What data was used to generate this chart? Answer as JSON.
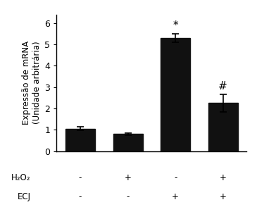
{
  "values": [
    1.05,
    0.8,
    5.3,
    2.25
  ],
  "errors": [
    0.08,
    0.05,
    0.2,
    0.42
  ],
  "bar_color": "#111111",
  "bar_width": 0.62,
  "bar_positions": [
    1,
    2,
    3,
    4
  ],
  "ylabel_line1": "Expressão de mRNA",
  "ylabel_line2": "(Unidade arbitrária)",
  "ylim": [
    0,
    6.4
  ],
  "yticks": [
    0,
    1,
    2,
    3,
    4,
    5,
    6
  ],
  "h2o2_labels": [
    "-",
    "+",
    "-",
    "+"
  ],
  "ecj_labels": [
    "-",
    "-",
    "+",
    "+"
  ],
  "row_label_h2o2": "H₂O₂",
  "row_label_ecj": "ECJ",
  "annotation_3": "*",
  "annotation_4": "#",
  "background_color": "#ffffff",
  "label_fontsize": 8.5,
  "tick_fontsize": 9,
  "annot_fontsize": 11
}
